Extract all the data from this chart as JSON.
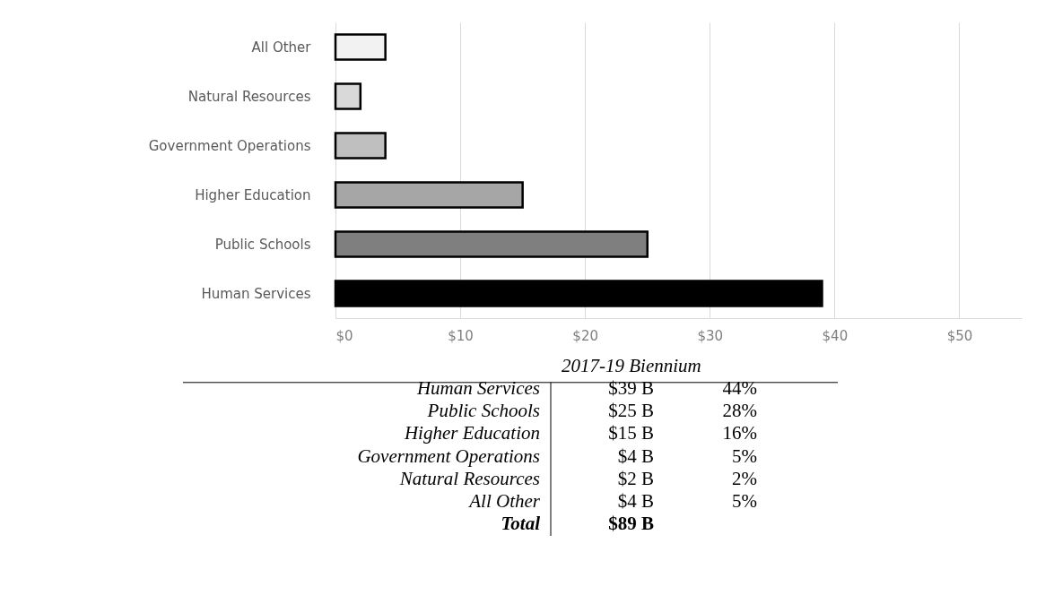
{
  "chart_data": {
    "type": "bar",
    "orientation": "horizontal",
    "categories": [
      "All Other",
      "Natural Resources",
      "Government Operations",
      "Higher Education",
      "Public Schools",
      "Human Services"
    ],
    "values": [
      4,
      2,
      4,
      15,
      25,
      39
    ],
    "colors": [
      "#f2f2f2",
      "#d9d9d9",
      "#bfbfbf",
      "#a6a6a6",
      "#7f7f7f",
      "#000000"
    ],
    "xlim": [
      0,
      55
    ],
    "xticks": [
      {
        "value": 0,
        "label": "$0"
      },
      {
        "value": 10,
        "label": "$10"
      },
      {
        "value": 20,
        "label": "$20"
      },
      {
        "value": 30,
        "label": "$30"
      },
      {
        "value": 40,
        "label": "$40"
      },
      {
        "value": 50,
        "label": "$50"
      }
    ],
    "grid": "x",
    "legend": false,
    "annotations": [
      "2017-19 Biennium",
      "Human Services",
      "$39 B",
      "44%",
      "Public Schools",
      "$25 B",
      "28%",
      "Higher Education",
      "$15 B",
      "16%",
      "Government Operations",
      "$4 B",
      "5%",
      "Natural Resources",
      "$2 B",
      "2%",
      "All Other",
      "$4 B",
      "5%",
      "Total",
      "$89 B"
    ]
  }
}
